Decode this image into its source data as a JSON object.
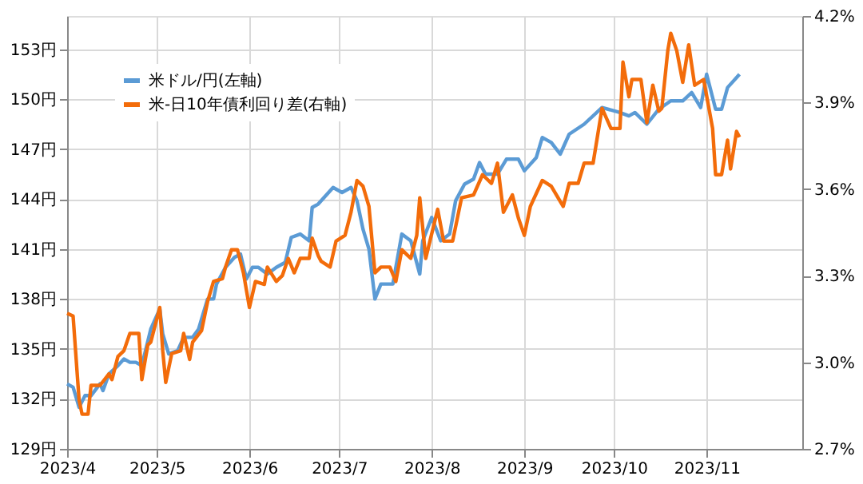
{
  "chart_data": {
    "type": "line",
    "legend": "top left",
    "grid": true,
    "line_style": "solid",
    "xlim": [
      "2023-04-01",
      "2023-12-03"
    ],
    "xticks": [
      {
        "value": "2023-04-01",
        "label": "2023/4"
      },
      {
        "value": "2023-05-01",
        "label": "2023/5"
      },
      {
        "value": "2023-06-01",
        "label": "2023/6"
      },
      {
        "value": "2023-07-01",
        "label": "2023/7"
      },
      {
        "value": "2023-08-01",
        "label": "2023/8"
      },
      {
        "value": "2023-09-01",
        "label": "2023/9"
      },
      {
        "value": "2023-10-01",
        "label": "2023/10"
      },
      {
        "value": "2023-11-01",
        "label": "2023/11"
      }
    ],
    "ylim": [
      129,
      155
    ],
    "yticks": [
      {
        "value": 129,
        "label": "129円"
      },
      {
        "value": 132,
        "label": "132円"
      },
      {
        "value": 135,
        "label": "135円"
      },
      {
        "value": 138,
        "label": "138円"
      },
      {
        "value": 141,
        "label": "141円"
      },
      {
        "value": 144,
        "label": "144円"
      },
      {
        "value": 147,
        "label": "147円"
      },
      {
        "value": 150,
        "label": "150円"
      },
      {
        "value": 153,
        "label": "153円"
      }
    ],
    "y2lim": [
      2.7,
      4.2
    ],
    "y2ticks": [
      {
        "value": 2.7,
        "label": "2.7%"
      },
      {
        "value": 3.0,
        "label": "3.0%"
      },
      {
        "value": 3.3,
        "label": "3.3%"
      },
      {
        "value": 3.6,
        "label": "3.6%"
      },
      {
        "value": 3.9,
        "label": "3.9%"
      },
      {
        "value": 4.2,
        "label": "4.2%"
      }
    ],
    "series": [
      {
        "name": "米ドル/円(左軸)",
        "color": "#5b9bd5",
        "axis": "y",
        "x": [
          "2023-04-01",
          "2023-04-03",
          "2023-04-05",
          "2023-04-07",
          "2023-04-09",
          "2023-04-12",
          "2023-04-13",
          "2023-04-15",
          "2023-04-18",
          "2023-04-20",
          "2023-04-22",
          "2023-04-24",
          "2023-04-26",
          "2023-04-29",
          "2023-05-02",
          "2023-05-03",
          "2023-05-05",
          "2023-05-08",
          "2023-05-10",
          "2023-05-13",
          "2023-05-15",
          "2023-05-18",
          "2023-05-20",
          "2023-05-21",
          "2023-05-24",
          "2023-05-27",
          "2023-05-29",
          "2023-05-31",
          "2023-06-02",
          "2023-06-04",
          "2023-06-07",
          "2023-06-10",
          "2023-06-13",
          "2023-06-15",
          "2023-06-18",
          "2023-06-21",
          "2023-06-22",
          "2023-06-24",
          "2023-06-29",
          "2023-07-02",
          "2023-07-05",
          "2023-07-07",
          "2023-07-09",
          "2023-07-11",
          "2023-07-13",
          "2023-07-15",
          "2023-07-19",
          "2023-07-22",
          "2023-07-25",
          "2023-07-28",
          "2023-07-29",
          "2023-08-01",
          "2023-08-04",
          "2023-08-07",
          "2023-08-09",
          "2023-08-12",
          "2023-08-15",
          "2023-08-17",
          "2023-08-19",
          "2023-08-23",
          "2023-08-26",
          "2023-08-30",
          "2023-09-01",
          "2023-09-05",
          "2023-09-07",
          "2023-09-10",
          "2023-09-13",
          "2023-09-16",
          "2023-09-21",
          "2023-09-27",
          "2023-10-03",
          "2023-10-06",
          "2023-10-08",
          "2023-10-12",
          "2023-10-16",
          "2023-10-20",
          "2023-10-24",
          "2023-10-27",
          "2023-10-30",
          "2023-11-01",
          "2023-11-04",
          "2023-11-06",
          "2023-11-08",
          "2023-11-12"
        ],
        "values": [
          132.9,
          132.7,
          131.5,
          132.2,
          132.2,
          132.9,
          132.5,
          133.5,
          134.0,
          134.4,
          134.2,
          134.2,
          134.0,
          136.2,
          137.4,
          135.9,
          134.7,
          134.9,
          135.7,
          135.7,
          136.2,
          138.0,
          138.0,
          138.9,
          139.9,
          140.5,
          140.7,
          139.2,
          139.9,
          139.9,
          139.5,
          139.9,
          140.2,
          141.7,
          141.9,
          141.5,
          143.5,
          143.7,
          144.7,
          144.4,
          144.7,
          143.9,
          142.2,
          141.0,
          138.0,
          138.9,
          138.9,
          141.9,
          141.5,
          139.5,
          141.5,
          142.9,
          141.5,
          141.9,
          143.9,
          144.9,
          145.2,
          146.2,
          145.5,
          145.5,
          146.4,
          146.4,
          145.7,
          146.5,
          147.7,
          147.4,
          146.7,
          147.9,
          148.5,
          149.5,
          149.2,
          149.0,
          149.2,
          148.5,
          149.4,
          149.9,
          149.9,
          150.4,
          149.5,
          151.5,
          149.4,
          149.4,
          150.7,
          151.5
        ]
      },
      {
        "name": "米-日10年債利回り差(右軸)",
        "color": "#f36c0a",
        "axis": "y2",
        "x": [
          "2023-04-01",
          "2023-04-03",
          "2023-04-05",
          "2023-04-06",
          "2023-04-08",
          "2023-04-09",
          "2023-04-12",
          "2023-04-15",
          "2023-04-16",
          "2023-04-18",
          "2023-04-20",
          "2023-04-22",
          "2023-04-25",
          "2023-04-26",
          "2023-04-28",
          "2023-04-29",
          "2023-05-02",
          "2023-05-03",
          "2023-05-04",
          "2023-05-06",
          "2023-05-09",
          "2023-05-10",
          "2023-05-12",
          "2023-05-13",
          "2023-05-16",
          "2023-05-18",
          "2023-05-20",
          "2023-05-23",
          "2023-05-24",
          "2023-05-26",
          "2023-05-28",
          "2023-05-30",
          "2023-06-01",
          "2023-06-03",
          "2023-06-06",
          "2023-06-07",
          "2023-06-10",
          "2023-06-12",
          "2023-06-14",
          "2023-06-16",
          "2023-06-18",
          "2023-06-21",
          "2023-06-22",
          "2023-06-24",
          "2023-06-25",
          "2023-06-28",
          "2023-06-30",
          "2023-07-03",
          "2023-07-05",
          "2023-07-07",
          "2023-07-09",
          "2023-07-11",
          "2023-07-13",
          "2023-07-15",
          "2023-07-18",
          "2023-07-20",
          "2023-07-22",
          "2023-07-25",
          "2023-07-27",
          "2023-07-28",
          "2023-07-30",
          "2023-08-03",
          "2023-08-05",
          "2023-08-08",
          "2023-08-11",
          "2023-08-15",
          "2023-08-18",
          "2023-08-21",
          "2023-08-23",
          "2023-08-25",
          "2023-08-28",
          "2023-08-30",
          "2023-09-01",
          "2023-09-03",
          "2023-09-07",
          "2023-09-10",
          "2023-09-14",
          "2023-09-16",
          "2023-09-19",
          "2023-09-21",
          "2023-09-24",
          "2023-09-27",
          "2023-09-30",
          "2023-10-03",
          "2023-10-04",
          "2023-10-06",
          "2023-10-07",
          "2023-10-10",
          "2023-10-12",
          "2023-10-14",
          "2023-10-16",
          "2023-10-17",
          "2023-10-19",
          "2023-10-20",
          "2023-10-22",
          "2023-10-24",
          "2023-10-26",
          "2023-10-28",
          "2023-10-31",
          "2023-11-03",
          "2023-11-04",
          "2023-11-06",
          "2023-11-08",
          "2023-11-09",
          "2023-11-11",
          "2023-11-12"
        ],
        "values": [
          3.17,
          3.16,
          2.87,
          2.82,
          2.82,
          2.92,
          2.92,
          2.96,
          2.94,
          3.02,
          3.04,
          3.1,
          3.1,
          2.94,
          3.06,
          3.07,
          3.19,
          3.04,
          2.93,
          3.03,
          3.04,
          3.1,
          3.01,
          3.07,
          3.11,
          3.21,
          3.28,
          3.29,
          3.33,
          3.39,
          3.39,
          3.31,
          3.19,
          3.28,
          3.27,
          3.33,
          3.28,
          3.3,
          3.36,
          3.31,
          3.36,
          3.36,
          3.43,
          3.37,
          3.35,
          3.33,
          3.42,
          3.44,
          3.52,
          3.63,
          3.61,
          3.54,
          3.31,
          3.33,
          3.33,
          3.28,
          3.39,
          3.36,
          3.44,
          3.57,
          3.36,
          3.53,
          3.42,
          3.42,
          3.57,
          3.58,
          3.65,
          3.62,
          3.69,
          3.52,
          3.58,
          3.5,
          3.44,
          3.54,
          3.63,
          3.61,
          3.54,
          3.62,
          3.62,
          3.69,
          3.69,
          3.88,
          3.81,
          3.81,
          4.04,
          3.92,
          3.98,
          3.98,
          3.83,
          3.96,
          3.87,
          3.88,
          4.08,
          4.14,
          4.08,
          3.97,
          4.1,
          3.96,
          3.98,
          3.81,
          3.65,
          3.65,
          3.77,
          3.67,
          3.8,
          3.78
        ]
      }
    ]
  }
}
